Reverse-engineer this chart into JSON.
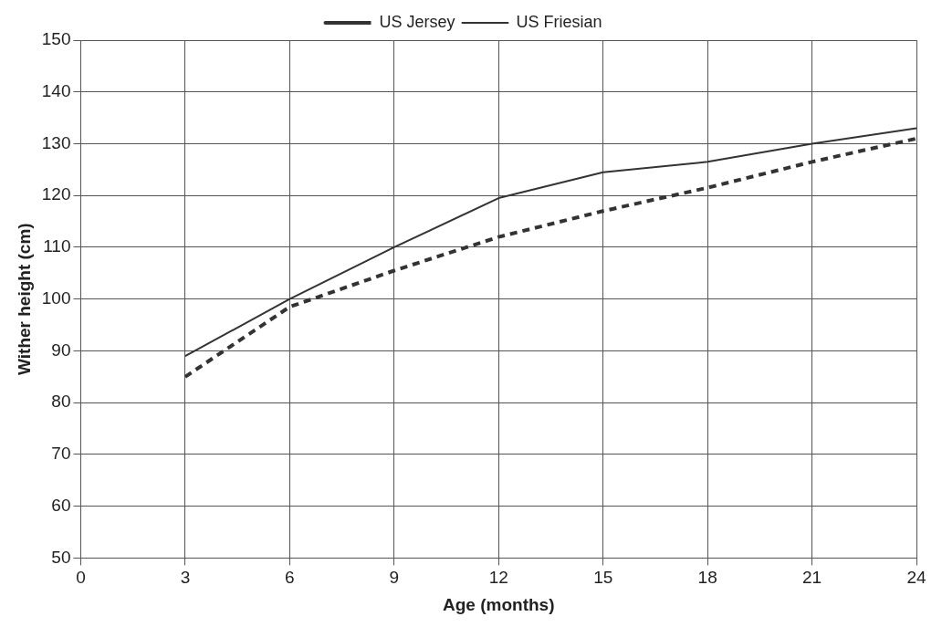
{
  "chart_data": {
    "type": "line",
    "xlabel": "Age (months)",
    "ylabel": "Wither height (cm)",
    "x": [
      3,
      6,
      9,
      12,
      15,
      18,
      21,
      24
    ],
    "series": [
      {
        "name": "US Jersey",
        "color": "#333333",
        "line_style": "dashed",
        "values": [
          85,
          98.5,
          105.5,
          112,
          117,
          121.5,
          126.5,
          131
        ]
      },
      {
        "name": "US Friesian",
        "color": "#333333",
        "line_style": "solid",
        "values": [
          89,
          100,
          110,
          119.5,
          124.5,
          126.5,
          130,
          133
        ]
      }
    ],
    "xlim": [
      0,
      24
    ],
    "xticks": [
      0,
      3,
      6,
      9,
      12,
      15,
      18,
      21,
      24
    ],
    "ylim": [
      50,
      150
    ],
    "yticks": [
      50,
      60,
      70,
      80,
      90,
      100,
      110,
      120,
      130,
      140,
      150
    ],
    "grid": true,
    "legend": "top",
    "marker": "none"
  }
}
